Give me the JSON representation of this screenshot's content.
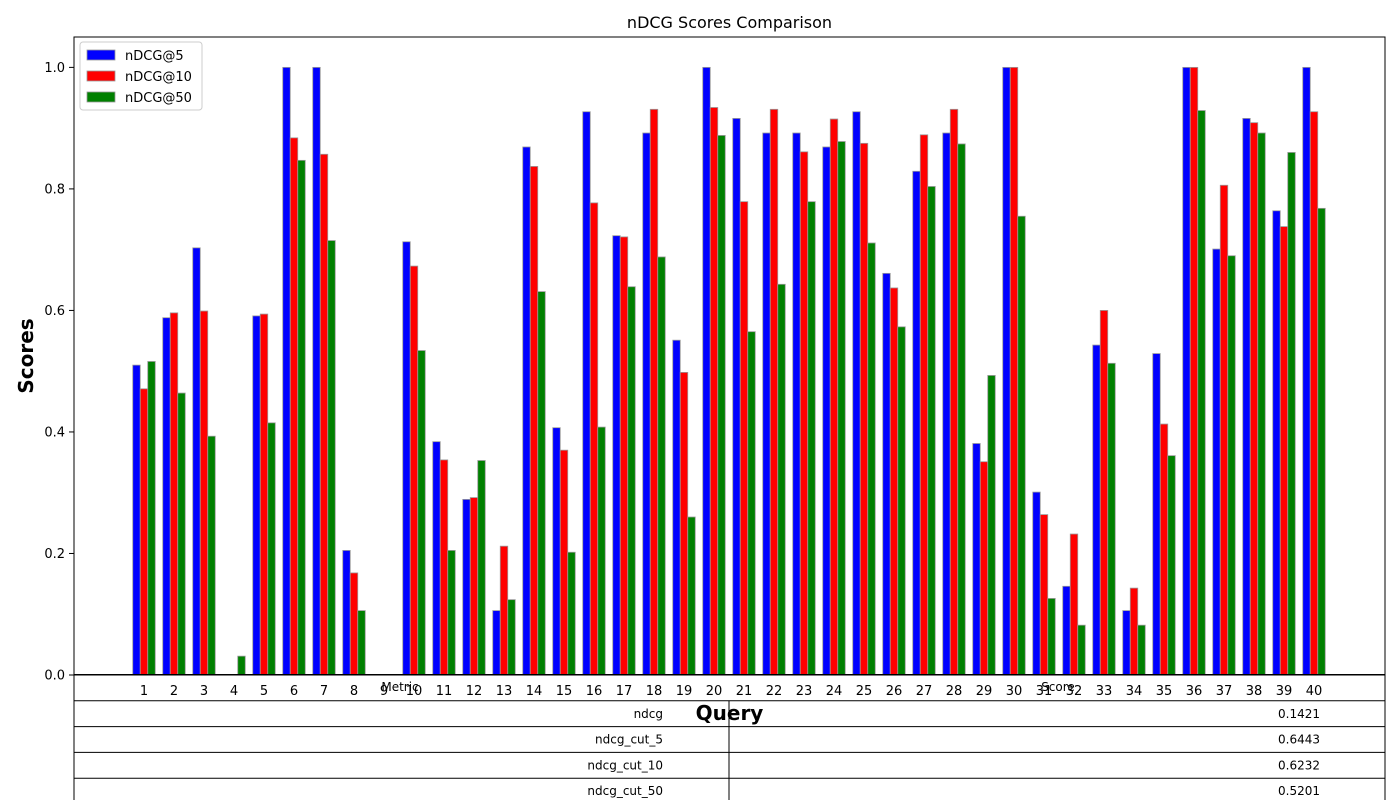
{
  "chart_data": {
    "type": "bar",
    "title": "nDCG Scores Comparison",
    "xlabel": "Query",
    "ylabel": "Scores",
    "ylim": [
      0,
      1.05
    ],
    "yticks": [
      "0.0",
      "0.2",
      "0.4",
      "0.6",
      "0.8",
      "1.0"
    ],
    "grid": false,
    "legend_position": "top-left",
    "categories": [
      "1",
      "2",
      "3",
      "4",
      "5",
      "6",
      "7",
      "8",
      "9",
      "10",
      "11",
      "12",
      "13",
      "14",
      "15",
      "16",
      "17",
      "18",
      "19",
      "20",
      "21",
      "22",
      "23",
      "24",
      "25",
      "26",
      "27",
      "28",
      "29",
      "30",
      "31",
      "32",
      "33",
      "34",
      "35",
      "36",
      "37",
      "38",
      "39",
      "40"
    ],
    "series": [
      {
        "name": "nDCG@5",
        "color": "#0000ff",
        "values": [
          0.51,
          0.588,
          0.703,
          0.0,
          0.591,
          1.0,
          1.0,
          0.205,
          0.0,
          0.713,
          0.384,
          0.289,
          0.106,
          0.869,
          0.407,
          0.927,
          0.723,
          0.892,
          0.551,
          1.0,
          0.916,
          0.892,
          0.892,
          0.869,
          0.927,
          0.661,
          0.829,
          0.892,
          0.381,
          1.0,
          0.301,
          0.146,
          0.543,
          0.106,
          0.529,
          1.0,
          0.701,
          0.916,
          0.764,
          1.0
        ]
      },
      {
        "name": "nDCG@10",
        "color": "#ff0000",
        "values": [
          0.471,
          0.596,
          0.599,
          0.0,
          0.594,
          0.884,
          0.857,
          0.168,
          0.0,
          0.673,
          0.354,
          0.292,
          0.212,
          0.837,
          0.37,
          0.777,
          0.721,
          0.931,
          0.498,
          0.934,
          0.779,
          0.931,
          0.861,
          0.915,
          0.875,
          0.637,
          0.889,
          0.931,
          0.351,
          1.0,
          0.264,
          0.232,
          0.6,
          0.143,
          0.413,
          1.0,
          0.806,
          0.909,
          0.738,
          0.927
        ]
      },
      {
        "name": "nDCG@50",
        "color": "#008000",
        "values": [
          0.516,
          0.464,
          0.393,
          0.031,
          0.415,
          0.847,
          0.715,
          0.106,
          0.0,
          0.534,
          0.205,
          0.353,
          0.124,
          0.631,
          0.202,
          0.408,
          0.639,
          0.688,
          0.26,
          0.888,
          0.565,
          0.643,
          0.779,
          0.878,
          0.711,
          0.573,
          0.804,
          0.874,
          0.493,
          0.755,
          0.126,
          0.082,
          0.513,
          0.082,
          0.361,
          0.929,
          0.69,
          0.892,
          0.86,
          0.768
        ]
      }
    ]
  },
  "table": {
    "headers": [
      "Metric",
      "Score"
    ],
    "rows": [
      [
        "ndcg",
        "0.1421"
      ],
      [
        "ndcg_cut_5",
        "0.6443"
      ],
      [
        "ndcg_cut_10",
        "0.6232"
      ],
      [
        "ndcg_cut_50",
        "0.5201"
      ]
    ]
  }
}
